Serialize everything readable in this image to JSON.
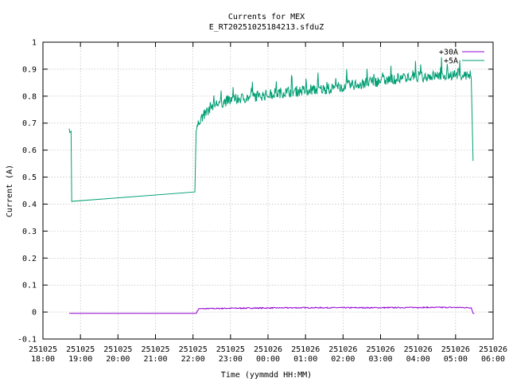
{
  "chart_data": {
    "type": "line",
    "title": "Currents for MEX",
    "subtitle": "E_RT20251025184213.sfduZ",
    "xlabel": "Time (yymmdd HH:MM)",
    "ylabel": "Current (A)",
    "ylim": [
      -0.1,
      1.0
    ],
    "yticks": [
      "-0.1",
      "0",
      "0.1",
      "0.2",
      "0.3",
      "0.4",
      "0.5",
      "0.6",
      "0.7",
      "0.8",
      "0.9",
      "1"
    ],
    "xlim": [
      "2025-10-25 18:00",
      "2025-10-26 06:00"
    ],
    "xticks": [
      {
        "date": "251025",
        "time": "18:00"
      },
      {
        "date": "251025",
        "time": "19:00"
      },
      {
        "date": "251025",
        "time": "20:00"
      },
      {
        "date": "251025",
        "time": "21:00"
      },
      {
        "date": "251025",
        "time": "22:00"
      },
      {
        "date": "251025",
        "time": "23:00"
      },
      {
        "date": "251026",
        "time": "00:00"
      },
      {
        "date": "251026",
        "time": "01:00"
      },
      {
        "date": "251026",
        "time": "02:00"
      },
      {
        "date": "251026",
        "time": "03:00"
      },
      {
        "date": "251026",
        "time": "04:00"
      },
      {
        "date": "251026",
        "time": "05:00"
      },
      {
        "date": "251026",
        "time": "06:00"
      }
    ],
    "grid": true,
    "legend_position": "top-right",
    "series": [
      {
        "name": "+30A",
        "color": "#9400d3",
        "points": [
          [
            "2025-10-25 18:42",
            -0.005
          ],
          [
            "2025-10-25 22:05",
            -0.005
          ],
          [
            "2025-10-25 22:09",
            0.012
          ],
          [
            "2025-10-25 23:00",
            0.014
          ],
          [
            "2025-10-26 00:00",
            0.015
          ],
          [
            "2025-10-26 01:00",
            0.016
          ],
          [
            "2025-10-26 02:00",
            0.016
          ],
          [
            "2025-10-26 03:00",
            0.016
          ],
          [
            "2025-10-26 04:00",
            0.017
          ],
          [
            "2025-10-26 05:00",
            0.017
          ],
          [
            "2025-10-26 05:25",
            0.016
          ],
          [
            "2025-10-26 05:28",
            -0.005
          ],
          [
            "2025-10-26 05:30",
            -0.005
          ]
        ]
      },
      {
        "name": "+5A",
        "color": "#009e73",
        "points": [
          [
            "2025-10-25 18:42",
            0.68
          ],
          [
            "2025-10-25 18:43",
            0.665
          ],
          [
            "2025-10-25 18:45",
            0.67
          ],
          [
            "2025-10-25 18:46",
            0.41
          ],
          [
            "2025-10-25 22:03",
            0.445
          ],
          [
            "2025-10-25 22:05",
            0.67
          ],
          [
            "2025-10-25 22:10",
            0.7
          ],
          [
            "2025-10-25 22:30",
            0.76
          ],
          [
            "2025-10-25 23:00",
            0.78
          ],
          [
            "2025-10-25 23:30",
            0.79
          ],
          [
            "2025-10-26 00:00",
            0.8
          ],
          [
            "2025-10-26 00:30",
            0.81
          ],
          [
            "2025-10-26 01:00",
            0.815
          ],
          [
            "2025-10-26 01:30",
            0.82
          ],
          [
            "2025-10-26 02:00",
            0.83
          ],
          [
            "2025-10-26 02:30",
            0.84
          ],
          [
            "2025-10-26 03:00",
            0.85
          ],
          [
            "2025-10-26 03:30",
            0.86
          ],
          [
            "2025-10-26 04:00",
            0.865
          ],
          [
            "2025-10-26 04:30",
            0.87
          ],
          [
            "2025-10-26 05:00",
            0.875
          ],
          [
            "2025-10-26 05:25",
            0.87
          ],
          [
            "2025-10-26 05:28",
            0.56
          ]
        ]
      }
    ]
  }
}
